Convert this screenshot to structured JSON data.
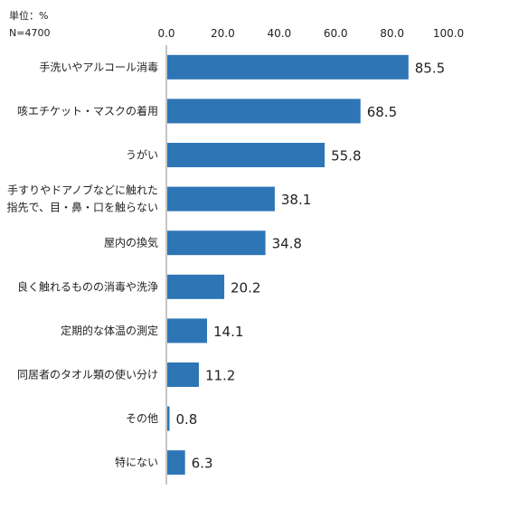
{
  "notes": {
    "unit": "単位：%",
    "sample": "N=4700"
  },
  "chart_data": {
    "type": "bar",
    "orientation": "horizontal",
    "categories": [
      "手洗いやアルコール消毒",
      "咳エチケット・マスクの着用",
      "うがい",
      "手すりやドアノブなどに触れた\n指先で、目・鼻・口を触らない",
      "屋内の換気",
      "良く触れるものの消毒や洗浄",
      "定期的な体温の測定",
      "同居者のタオル類の使い分け",
      "その他",
      "特にない"
    ],
    "values": [
      85.5,
      68.5,
      55.8,
      38.1,
      34.8,
      20.2,
      14.1,
      11.2,
      0.8,
      6.3
    ],
    "xlim": [
      0,
      100
    ],
    "xticks": [
      "0.0",
      "20.0",
      "40.0",
      "60.0",
      "80.0",
      "100.0"
    ],
    "x_axis_position": "top",
    "grid": false,
    "legend": "none",
    "bar_color": "#2e75b6",
    "value_labels": [
      "85.5",
      "68.5",
      "55.8",
      "38.1",
      "34.8",
      "20.2",
      "14.1",
      "11.2",
      "0.8",
      "6.3"
    ]
  }
}
